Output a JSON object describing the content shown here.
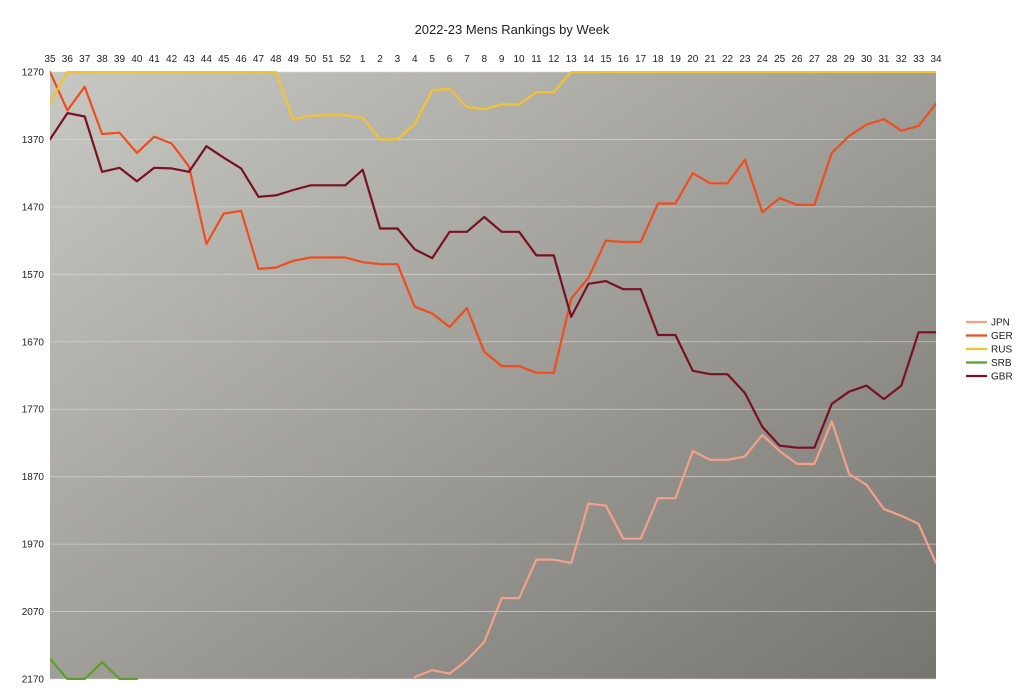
{
  "chart_data": {
    "type": "line",
    "title": "2022-23 Mens Rankings by Week",
    "xlabel": "",
    "ylabel": "",
    "x": [
      "35",
      "36",
      "37",
      "38",
      "39",
      "40",
      "41",
      "42",
      "43",
      "44",
      "45",
      "46",
      "47",
      "48",
      "49",
      "50",
      "51",
      "52",
      "1",
      "2",
      "3",
      "4",
      "5",
      "6",
      "7",
      "8",
      "9",
      "10",
      "11",
      "12",
      "13",
      "14",
      "15",
      "16",
      "17",
      "18",
      "19",
      "20",
      "21",
      "22",
      "23",
      "24",
      "25",
      "26",
      "27",
      "28",
      "29",
      "30",
      "31",
      "32",
      "33",
      "34"
    ],
    "ylim": [
      1270,
      2170
    ],
    "y_reversed": true,
    "y_ticks": [
      1270,
      1370,
      1470,
      1570,
      1670,
      1770,
      1870,
      1970,
      2070,
      2170
    ],
    "grid": "horizontal",
    "x_axis_position": "top",
    "legend_position": "right",
    "series": [
      {
        "name": "JPN",
        "color": "#f4a08a",
        "values": [
          null,
          null,
          null,
          null,
          null,
          null,
          null,
          null,
          null,
          null,
          null,
          null,
          null,
          null,
          null,
          null,
          null,
          null,
          null,
          null,
          null,
          2167,
          2157,
          2162,
          2142,
          2115,
          2050,
          2050,
          1993,
          1993,
          1998,
          1910,
          1913,
          1962,
          1962,
          1902,
          1902,
          1832,
          1845,
          1845,
          1840,
          1808,
          1832,
          1851,
          1851,
          1788,
          1866,
          1882,
          1918,
          1928,
          1940,
          1998
        ]
      },
      {
        "name": "GER",
        "color": "#ef4d1e",
        "values": [
          1270,
          1327,
          1292,
          1362,
          1360,
          1390,
          1366,
          1376,
          1410,
          1525,
          1480,
          1476,
          1562,
          1560,
          1550,
          1545,
          1545,
          1545,
          1552,
          1555,
          1555,
          1618,
          1628,
          1648,
          1620,
          1685,
          1706,
          1706,
          1716,
          1716,
          1606,
          1575,
          1520,
          1522,
          1522,
          1465,
          1465,
          1420,
          1435,
          1435,
          1400,
          1478,
          1457,
          1467,
          1467,
          1390,
          1365,
          1348,
          1340,
          1357,
          1350,
          1317
        ]
      },
      {
        "name": "RUS",
        "color": "#f5c230",
        "values": [
          1315,
          1270,
          1270,
          1270,
          1270,
          1270,
          1270,
          1270,
          1270,
          1270,
          1270,
          1270,
          1270,
          1270,
          1340,
          1335,
          1334,
          1334,
          1338,
          1370,
          1370,
          1347,
          1297,
          1295,
          1322,
          1325,
          1318,
          1318,
          1300,
          1300,
          1270,
          1270,
          1270,
          1270,
          1270,
          1270,
          1270,
          1270,
          1270,
          1270,
          1270,
          1270,
          1270,
          1270,
          1270,
          1270,
          1270,
          1270,
          1270,
          1270,
          1270,
          1270
        ]
      },
      {
        "name": "SRB",
        "color": "#5c9e29",
        "values": [
          2140,
          2170,
          2170,
          2145,
          2170,
          2170,
          null,
          null,
          null,
          null,
          null,
          null,
          null,
          null,
          null,
          null,
          null,
          null,
          null,
          null,
          null,
          null,
          null,
          null,
          null,
          null,
          null,
          null,
          null,
          null,
          null,
          null,
          null,
          null,
          null,
          null,
          null,
          null,
          null,
          null,
          null,
          null,
          null,
          null,
          null,
          null,
          null,
          null,
          null,
          null,
          null,
          null
        ]
      },
      {
        "name": "GBR",
        "color": "#7a1024",
        "values": [
          1370,
          1331,
          1336,
          1418,
          1412,
          1432,
          1412,
          1413,
          1418,
          1380,
          1397,
          1413,
          1455,
          1453,
          1445,
          1438,
          1438,
          1438,
          1415,
          1502,
          1502,
          1533,
          1546,
          1507,
          1507,
          1485,
          1507,
          1507,
          1542,
          1542,
          1633,
          1584,
          1580,
          1592,
          1592,
          1660,
          1660,
          1713,
          1718,
          1718,
          1746,
          1796,
          1824,
          1827,
          1827,
          1762,
          1744,
          1735,
          1755,
          1735,
          1656,
          1656
        ]
      }
    ]
  }
}
